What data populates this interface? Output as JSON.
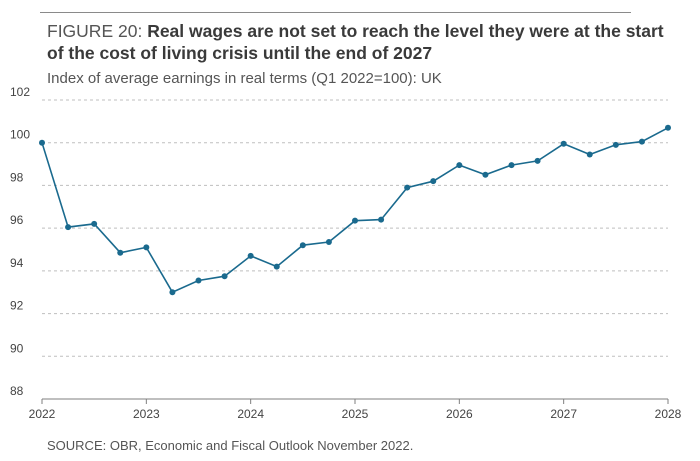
{
  "figure": {
    "label": "FIGURE 20:",
    "title": "Real wages are not set to reach the level they were at the start of the cost of living crisis until the end of 2027",
    "subtitle": "Index of average earnings in real terms (Q1 2022=100): UK",
    "source": "SOURCE: OBR, Economic and Fiscal Outlook November 2022."
  },
  "colors": {
    "line": "#1a6a8e",
    "grid": "#bfbfbf",
    "axis": "#7f7f7f"
  },
  "chart_data": {
    "type": "line",
    "title": "Real wages are not set to reach the level they were at the start of the cost of living crisis until the end of 2027",
    "subtitle": "Index of average earnings in real terms (Q1 2022=100): UK",
    "xlabel": "",
    "ylabel": "",
    "xlim": [
      2022,
      2028
    ],
    "ylim": [
      88,
      102
    ],
    "yticks": [
      88,
      90,
      92,
      94,
      96,
      98,
      100,
      102
    ],
    "xticks": [
      "2022",
      "2023",
      "2024",
      "2025",
      "2026",
      "2027",
      "2028"
    ],
    "grid": "horizontal-dashed",
    "series": [
      {
        "name": "",
        "x": [
          2022.0,
          2022.25,
          2022.5,
          2022.75,
          2023.0,
          2023.25,
          2023.5,
          2023.75,
          2024.0,
          2024.25,
          2024.5,
          2024.75,
          2025.0,
          2025.25,
          2025.5,
          2025.75,
          2026.0,
          2026.25,
          2026.5,
          2026.75,
          2027.0,
          2027.25,
          2027.5,
          2027.75,
          2028.0
        ],
        "values": [
          100.0,
          96.05,
          96.2,
          94.85,
          95.1,
          93.0,
          93.55,
          93.75,
          94.7,
          94.2,
          95.2,
          95.35,
          96.35,
          96.4,
          97.9,
          98.2,
          98.95,
          98.5,
          98.95,
          99.15,
          99.95,
          99.45,
          99.9,
          100.05,
          100.7
        ]
      }
    ]
  }
}
